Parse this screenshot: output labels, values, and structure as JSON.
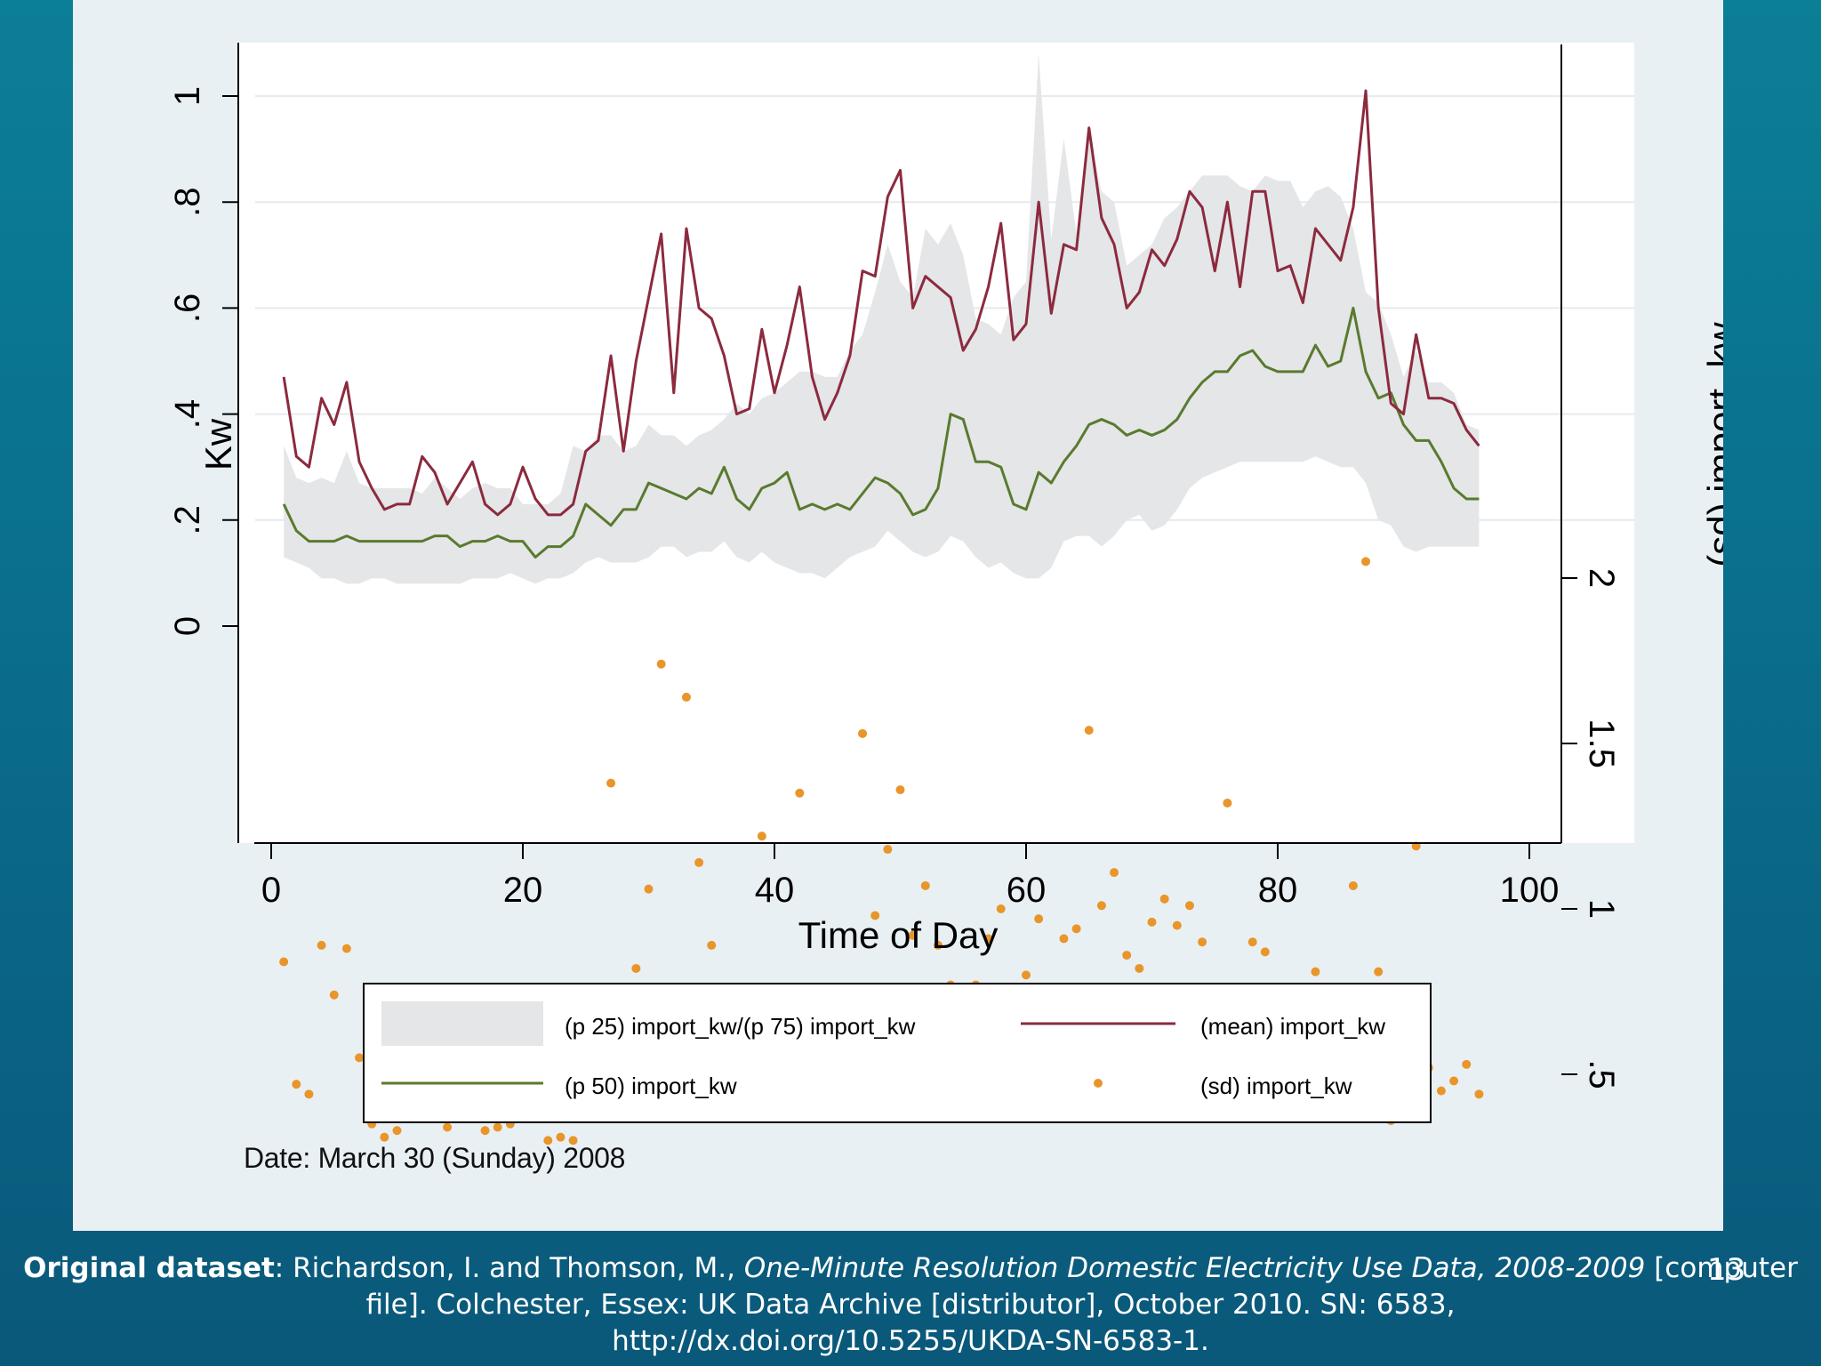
{
  "caption": "Date: March 30 (Sunday) 2008",
  "footer": {
    "label": "Original dataset",
    "sep": ": ",
    "authors": "Richardson, I. and Thomson, M., ",
    "title": "One-Minute Resolution Domestic Electricity Use Data, 2008-2009",
    "rest1": " [computer file]. Colchester, Essex: UK Data Archive [distributor], October 2010. SN: 6583,",
    "url": "http://dx.doi.org/10.5255/UKDA-SN-6583-1."
  },
  "slide_number": "13",
  "colors": {
    "mean": "#8c2a3e",
    "median": "#5a7a2e",
    "sd": "#e8962a",
    "band": "#e4e6e8"
  },
  "chart_data": {
    "type": "line",
    "title": "",
    "xlabel": "Time of Day",
    "ylabel": "Kw",
    "y2label": "(sd) import_kw",
    "xlim": [
      0,
      100
    ],
    "ylim": [
      0,
      1.1
    ],
    "y2lim": [
      0.25,
      2.25
    ],
    "xticks": [
      0,
      20,
      40,
      60,
      80,
      100
    ],
    "yticks": [
      {
        "v": 0,
        "label": "0"
      },
      {
        "v": 0.2,
        "label": ".2"
      },
      {
        "v": 0.4,
        "label": ".4"
      },
      {
        "v": 0.6,
        "label": ".6"
      },
      {
        "v": 0.8,
        "label": ".8"
      },
      {
        "v": 1,
        "label": "1"
      }
    ],
    "y2ticks": [
      {
        "v": 0.5,
        "label": ".5"
      },
      {
        "v": 1,
        "label": "1"
      },
      {
        "v": 1.5,
        "label": "1.5"
      },
      {
        "v": 2,
        "label": "2"
      }
    ],
    "grid": true,
    "legend_position": "bottom",
    "legend": [
      {
        "key": "band",
        "label": "(p 25) import_kw/(p 75) import_kw"
      },
      {
        "key": "mean",
        "label": "(mean) import_kw"
      },
      {
        "key": "median",
        "label": "(p 50) import_kw"
      },
      {
        "key": "sd",
        "label": "(sd) import_kw"
      }
    ],
    "x": [
      1,
      2,
      3,
      4,
      5,
      6,
      7,
      8,
      9,
      10,
      11,
      12,
      13,
      14,
      15,
      16,
      17,
      18,
      19,
      20,
      21,
      22,
      23,
      24,
      25,
      26,
      27,
      28,
      29,
      30,
      31,
      32,
      33,
      34,
      35,
      36,
      37,
      38,
      39,
      40,
      41,
      42,
      43,
      44,
      45,
      46,
      47,
      48,
      49,
      50,
      51,
      52,
      53,
      54,
      55,
      56,
      57,
      58,
      59,
      60,
      61,
      62,
      63,
      64,
      65,
      66,
      67,
      68,
      69,
      70,
      71,
      72,
      73,
      74,
      75,
      76,
      77,
      78,
      79,
      80,
      81,
      82,
      83,
      84,
      85,
      86,
      87,
      88,
      89,
      90,
      91,
      92,
      93,
      94,
      95,
      96
    ],
    "series": [
      {
        "name": "(mean) import_kw",
        "axis": "left",
        "values": [
          0.47,
          0.32,
          0.3,
          0.43,
          0.38,
          0.46,
          0.31,
          0.26,
          0.22,
          0.23,
          0.23,
          0.32,
          0.29,
          0.23,
          0.27,
          0.31,
          0.23,
          0.21,
          0.23,
          0.3,
          0.24,
          0.21,
          0.21,
          0.23,
          0.33,
          0.35,
          0.51,
          0.33,
          0.5,
          0.62,
          0.74,
          0.44,
          0.75,
          0.6,
          0.58,
          0.51,
          0.4,
          0.41,
          0.56,
          0.44,
          0.53,
          0.64,
          0.47,
          0.39,
          0.44,
          0.51,
          0.67,
          0.66,
          0.81,
          0.86,
          0.6,
          0.66,
          0.64,
          0.62,
          0.52,
          0.56,
          0.64,
          0.76,
          0.54,
          0.57,
          0.8,
          0.59,
          0.72,
          0.71,
          0.94,
          0.77,
          0.72,
          0.6,
          0.63,
          0.71,
          0.68,
          0.73,
          0.82,
          0.79,
          0.67,
          0.8,
          0.64,
          0.82,
          0.82,
          0.67,
          0.68,
          0.61,
          0.75,
          0.72,
          0.69,
          0.79,
          1.01,
          0.6,
          0.42,
          0.4,
          0.55,
          0.43,
          0.43,
          0.42,
          0.37,
          0.34
        ]
      },
      {
        "name": "(p 50) import_kw",
        "axis": "left",
        "values": [
          0.23,
          0.18,
          0.16,
          0.16,
          0.16,
          0.17,
          0.16,
          0.16,
          0.16,
          0.16,
          0.16,
          0.16,
          0.17,
          0.17,
          0.15,
          0.16,
          0.16,
          0.17,
          0.16,
          0.16,
          0.13,
          0.15,
          0.15,
          0.17,
          0.23,
          0.21,
          0.19,
          0.22,
          0.22,
          0.27,
          0.26,
          0.25,
          0.24,
          0.26,
          0.25,
          0.3,
          0.24,
          0.22,
          0.26,
          0.27,
          0.29,
          0.22,
          0.23,
          0.22,
          0.23,
          0.22,
          0.25,
          0.28,
          0.27,
          0.25,
          0.21,
          0.22,
          0.26,
          0.4,
          0.39,
          0.31,
          0.31,
          0.3,
          0.23,
          0.22,
          0.29,
          0.27,
          0.31,
          0.34,
          0.38,
          0.39,
          0.38,
          0.36,
          0.37,
          0.36,
          0.37,
          0.39,
          0.43,
          0.46,
          0.48,
          0.48,
          0.51,
          0.52,
          0.49,
          0.48,
          0.48,
          0.48,
          0.53,
          0.49,
          0.5,
          0.6,
          0.48,
          0.43,
          0.44,
          0.38,
          0.35,
          0.35,
          0.31,
          0.26,
          0.24,
          0.24
        ]
      },
      {
        "name": "(sd) import_kw",
        "axis": "right",
        "values": [
          0.84,
          0.47,
          0.44,
          0.89,
          0.74,
          0.88,
          0.55,
          0.35,
          0.31,
          0.33,
          0.38,
          0.56,
          0.51,
          0.34,
          0.48,
          0.55,
          0.33,
          0.34,
          0.35,
          0.53,
          0.4,
          0.3,
          0.31,
          0.3,
          0.55,
          0.72,
          1.38,
          0.48,
          0.82,
          1.06,
          1.74,
          0.56,
          1.64,
          1.14,
          0.89,
          0.74,
          0.54,
          0.64,
          1.22,
          0.64,
          0.73,
          1.35,
          0.73,
          0.51,
          0.54,
          0.76,
          1.53,
          0.98,
          1.18,
          1.36,
          0.92,
          1.07,
          0.89,
          0.77,
          0.64,
          0.77,
          0.91,
          1.0,
          0.68,
          0.8,
          0.97,
          0.69,
          0.91,
          0.94,
          1.54,
          1.01,
          1.11,
          0.86,
          0.82,
          0.96,
          1.03,
          0.95,
          1.01,
          0.9,
          0.55,
          1.32,
          0.47,
          0.9,
          0.87,
          0.62,
          0.7,
          0.47,
          0.81,
          0.74,
          0.72,
          1.07,
          2.05,
          0.81,
          0.36,
          0.38,
          1.19,
          0.52,
          0.45,
          0.48,
          0.53,
          0.44
        ]
      }
    ],
    "band": {
      "name": "(p 25) import_kw/(p 75) import_kw",
      "p25": [
        0.13,
        0.12,
        0.11,
        0.09,
        0.09,
        0.08,
        0.08,
        0.09,
        0.09,
        0.08,
        0.08,
        0.08,
        0.08,
        0.08,
        0.08,
        0.09,
        0.09,
        0.09,
        0.1,
        0.09,
        0.08,
        0.09,
        0.09,
        0.1,
        0.12,
        0.13,
        0.12,
        0.12,
        0.12,
        0.13,
        0.15,
        0.15,
        0.13,
        0.14,
        0.14,
        0.16,
        0.13,
        0.12,
        0.14,
        0.12,
        0.11,
        0.1,
        0.1,
        0.09,
        0.11,
        0.13,
        0.14,
        0.15,
        0.18,
        0.16,
        0.14,
        0.13,
        0.14,
        0.17,
        0.16,
        0.13,
        0.11,
        0.12,
        0.1,
        0.09,
        0.09,
        0.11,
        0.16,
        0.17,
        0.17,
        0.15,
        0.17,
        0.2,
        0.21,
        0.18,
        0.19,
        0.22,
        0.26,
        0.28,
        0.29,
        0.3,
        0.31,
        0.31,
        0.31,
        0.31,
        0.31,
        0.31,
        0.32,
        0.31,
        0.3,
        0.3,
        0.27,
        0.2,
        0.19,
        0.15,
        0.14,
        0.15,
        0.15,
        0.15,
        0.15,
        0.15
      ],
      "p75": [
        0.34,
        0.28,
        0.27,
        0.28,
        0.27,
        0.33,
        0.27,
        0.26,
        0.26,
        0.26,
        0.26,
        0.25,
        0.28,
        0.26,
        0.24,
        0.26,
        0.27,
        0.26,
        0.26,
        0.23,
        0.23,
        0.23,
        0.25,
        0.34,
        0.33,
        0.36,
        0.36,
        0.33,
        0.34,
        0.38,
        0.36,
        0.36,
        0.34,
        0.36,
        0.37,
        0.39,
        0.42,
        0.4,
        0.43,
        0.44,
        0.46,
        0.48,
        0.48,
        0.47,
        0.47,
        0.52,
        0.55,
        0.63,
        0.72,
        0.65,
        0.62,
        0.75,
        0.72,
        0.76,
        0.7,
        0.58,
        0.57,
        0.55,
        0.62,
        0.65,
        1.08,
        0.73,
        0.92,
        0.74,
        0.93,
        0.82,
        0.8,
        0.68,
        0.7,
        0.72,
        0.77,
        0.79,
        0.82,
        0.85,
        0.85,
        0.85,
        0.83,
        0.82,
        0.85,
        0.84,
        0.84,
        0.79,
        0.82,
        0.83,
        0.81,
        0.75,
        0.63,
        0.61,
        0.55,
        0.47,
        0.52,
        0.46,
        0.46,
        0.44,
        0.38,
        0.37
      ]
    }
  }
}
